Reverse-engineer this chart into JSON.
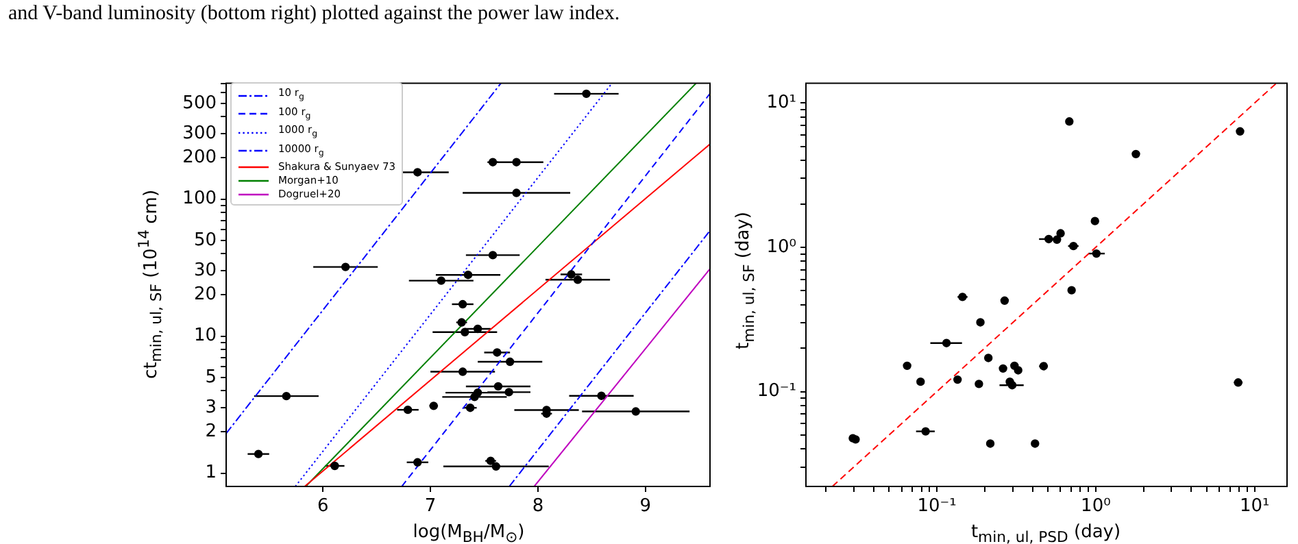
{
  "chart_data": [
    {
      "type": "scatter",
      "annotations": [
        "and V-band luminosity (bottom right) plotted against the power law index."
      ],
      "xlabel": "log(M$_{BH}$/M$_{⊙}$)",
      "ylabel": "ct$_{min, ul, SF}$ (10$^{14}$ cm)",
      "log": "y",
      "grid": false,
      "legend": "top left",
      "xlim": [
        5.1,
        9.6
      ],
      "xticks": [
        6,
        7,
        8,
        9
      ],
      "ylim": [
        0.8,
        700
      ],
      "yticks": [
        1,
        2,
        3,
        {
          "value": 4,
          "label": null
        },
        5,
        {
          "value": 6,
          "label": null
        },
        {
          "value": 7,
          "label": null
        },
        {
          "value": 8,
          "label": null
        },
        {
          "value": 9,
          "label": null
        },
        10,
        20,
        30,
        {
          "value": 40,
          "label": null
        },
        50,
        {
          "value": 60,
          "label": null
        },
        {
          "value": 70,
          "label": null
        },
        {
          "value": 80,
          "label": null
        },
        {
          "value": 90,
          "label": null
        },
        100,
        200,
        300,
        {
          "value": 400,
          "label": null
        },
        500,
        {
          "value": 600,
          "label": null
        },
        {
          "value": 700,
          "label": null
        }
      ],
      "series": [
        {
          "type": "scatter",
          "color": "#000000",
          "marker": "circle",
          "x": [
            6.88,
            7.58,
            7.8,
            7.8,
            8.45,
            6.21,
            7.58,
            7.35,
            7.1,
            7.3,
            7.29,
            7.32,
            7.44,
            7.62,
            7.74,
            7.3,
            7.63,
            7.73,
            7.44,
            7.41,
            5.66,
            7.03,
            6.79,
            7.37,
            5.4,
            6.11,
            6.88,
            7.56,
            7.61,
            8.31,
            8.37,
            8.59,
            8.91,
            8.08,
            8.08
          ],
          "values": [
            157,
            186,
            186,
            111,
            587,
            32,
            39,
            28,
            25.4,
            17.1,
            12.6,
            10.7,
            11.3,
            7.6,
            6.5,
            5.5,
            4.3,
            3.9,
            3.87,
            3.6,
            3.65,
            3.1,
            2.9,
            3.0,
            1.38,
            1.13,
            1.2,
            1.23,
            1.12,
            28.2,
            25.8,
            3.67,
            2.82,
            2.89,
            2.72
          ],
          "xerrors": [
            0.29,
            0.05,
            0.25,
            0.5,
            0.3,
            0.3,
            0.25,
            0.3,
            0.3,
            0.1,
            0.05,
            0.3,
            0.12,
            0.12,
            0.3,
            0.3,
            0.3,
            0.2,
            0.3,
            0.3,
            0.3,
            0.04,
            0.1,
            0.06,
            0.1,
            0.09,
            0.1,
            0.05,
            0.49,
            0.1,
            0.3,
            0.3,
            0.5,
            0.3,
            0.05
          ]
        },
        {
          "type": "line",
          "name": "10 r$_{g}$",
          "color": "#0000ff",
          "line_style": "dashdot",
          "x": [
            7.733,
            9.6
          ],
          "values": [
            0.8,
            58.9
          ]
        },
        {
          "type": "line",
          "name": "100 r$_{g}$",
          "color": "#0000ff",
          "line_style": "dashed",
          "x": [
            6.733,
            9.6
          ],
          "values": [
            0.8,
            589
          ]
        },
        {
          "type": "line",
          "name": "1000 r$_{g}$",
          "color": "#0000ff",
          "line_style": "dotted",
          "x": [
            5.743,
            8.688
          ],
          "values": [
            0.8,
            700
          ]
        },
        {
          "type": "line",
          "name": "10000 r$_{g}$",
          "color": "#0000ff",
          "line_style": "dashdot",
          "x": [
            5.1,
            7.655
          ],
          "values": [
            1.95,
            700
          ]
        },
        {
          "type": "line",
          "name": "Shakura & Sunyaev 73",
          "color": "#ff0000",
          "line_style": "solid",
          "x": [
            5.83,
            9.6
          ],
          "values": [
            0.8,
            252
          ]
        },
        {
          "type": "line",
          "name": "Morgan+10",
          "color": "#008000",
          "line_style": "solid",
          "x": [
            5.84,
            9.47
          ],
          "values": [
            0.8,
            700
          ]
        },
        {
          "type": "line",
          "name": "Dogruel+20",
          "color": "#bf00bf",
          "line_style": "solid",
          "x": [
            7.965,
            9.6
          ],
          "values": [
            0.8,
            31
          ]
        }
      ]
    },
    {
      "type": "scatter",
      "xlabel": "t$_{min, ul, PSD}$ (day)",
      "ylabel": "t$_{min, ul, SF}$ (day)",
      "log": "xy",
      "grid": false,
      "xlim": [
        0.015,
        16
      ],
      "xticks": [
        {
          "value": 0.02,
          "label": null
        },
        {
          "value": 0.03,
          "label": null
        },
        {
          "value": 0.04,
          "label": null
        },
        {
          "value": 0.05,
          "label": null
        },
        {
          "value": 0.06,
          "label": null
        },
        {
          "value": 0.07,
          "label": null
        },
        {
          "value": 0.08,
          "label": null
        },
        {
          "value": 0.09,
          "label": null
        },
        {
          "value": 0.1,
          "label": "10⁻¹"
        },
        {
          "value": 0.2,
          "label": null
        },
        {
          "value": 0.3,
          "label": null
        },
        {
          "value": 0.4,
          "label": null
        },
        {
          "value": 0.5,
          "label": null
        },
        {
          "value": 0.6,
          "label": null
        },
        {
          "value": 0.7,
          "label": null
        },
        {
          "value": 0.8,
          "label": null
        },
        {
          "value": 0.9,
          "label": null
        },
        {
          "value": 1,
          "label": "10⁰"
        },
        {
          "value": 2,
          "label": null
        },
        {
          "value": 3,
          "label": null
        },
        {
          "value": 4,
          "label": null
        },
        {
          "value": 5,
          "label": null
        },
        {
          "value": 6,
          "label": null
        },
        {
          "value": 7,
          "label": null
        },
        {
          "value": 8,
          "label": null
        },
        {
          "value": 9,
          "label": null
        },
        {
          "value": 10,
          "label": "10¹"
        }
      ],
      "ylim": [
        0.022,
        13.7
      ],
      "yticks": [
        {
          "value": 0.03,
          "label": null
        },
        {
          "value": 0.04,
          "label": null
        },
        {
          "value": 0.05,
          "label": null
        },
        {
          "value": 0.06,
          "label": null
        },
        {
          "value": 0.07,
          "label": null
        },
        {
          "value": 0.08,
          "label": null
        },
        {
          "value": 0.09,
          "label": null
        },
        {
          "value": 0.1,
          "label": "10⁻¹"
        },
        {
          "value": 0.2,
          "label": null
        },
        {
          "value": 0.3,
          "label": null
        },
        {
          "value": 0.4,
          "label": null
        },
        {
          "value": 0.5,
          "label": null
        },
        {
          "value": 0.6,
          "label": null
        },
        {
          "value": 0.7,
          "label": null
        },
        {
          "value": 0.8,
          "label": null
        },
        {
          "value": 0.9,
          "label": null
        },
        {
          "value": 1,
          "label": "10⁰"
        },
        {
          "value": 2,
          "label": null
        },
        {
          "value": 3,
          "label": null
        },
        {
          "value": 4,
          "label": null
        },
        {
          "value": 5,
          "label": null
        },
        {
          "value": 6,
          "label": null
        },
        {
          "value": 7,
          "label": null
        },
        {
          "value": 8,
          "label": null
        },
        {
          "value": 9,
          "label": null
        },
        {
          "value": 10,
          "label": "10¹"
        }
      ],
      "series": [
        {
          "type": "scatter",
          "color": "#000000",
          "marker": "circle",
          "x": [
            0.0296,
            0.0308,
            0.085,
            0.065,
            0.079,
            0.115,
            0.135,
            0.145,
            0.188,
            0.184,
            0.211,
            0.217,
            0.267,
            0.261,
            0.308,
            0.325,
            0.288,
            0.298,
            0.415,
            0.47,
            0.506,
            0.57,
            0.601,
            0.724,
            0.705,
            0.682,
            0.989,
            1.01,
            1.79,
            8.1,
            7.88
          ],
          "values": [
            0.0475,
            0.0466,
            0.053,
            0.151,
            0.117,
            0.217,
            0.121,
            0.453,
            0.302,
            0.113,
            0.171,
            0.0436,
            0.427,
            0.1445,
            0.151,
            0.1405,
            0.117,
            0.1107,
            0.0436,
            0.15,
            1.14,
            1.13,
            1.25,
            1.02,
            0.504,
            7.45,
            1.52,
            0.905,
            4.43,
            6.36,
            0.1156
          ],
          "xerrors": [
            null,
            null,
            [
              0.074,
              0.097
            ],
            null,
            null,
            [
              0.091,
              0.144
            ],
            null,
            [
              0.135,
              0.156
            ],
            null,
            null,
            null,
            null,
            null,
            null,
            null,
            null,
            null,
            [
              0.248,
              0.352
            ],
            null,
            [
              0.44,
              0.5
            ],
            [
              0.44,
              0.55
            ],
            null,
            null,
            [
              0.67,
              0.78
            ],
            null,
            null,
            null,
            [
              0.9,
              1.14
            ],
            null,
            null,
            [
              7.4,
              8.4
            ]
          ]
        },
        {
          "type": "line",
          "color": "#ff0000",
          "line_style": "dashed",
          "x": [
            0.022,
            13.7
          ],
          "values": [
            0.022,
            13.7
          ]
        }
      ]
    }
  ]
}
